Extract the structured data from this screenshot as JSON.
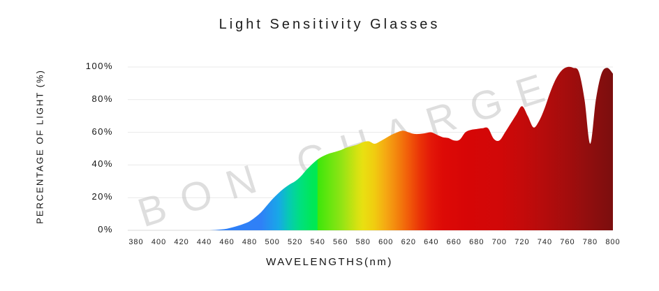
{
  "page": {
    "background": "#ffffff"
  },
  "chart_data": {
    "type": "area",
    "title": "Light Sensitivity Glasses",
    "xlabel": "WAVELENGTHS(nm)",
    "ylabel": "PERCENTAGE OF LIGHT (%)",
    "xlim": [
      380,
      800
    ],
    "ylim": [
      0,
      100
    ],
    "grid": "horizontal",
    "legend": "none",
    "gridline_color": "#e9e9e9",
    "baseline_color": "#d8d8d8",
    "x_start": 380,
    "x_step": 5,
    "values": [
      0,
      0,
      0,
      0,
      0,
      0,
      0,
      0,
      0,
      0,
      0,
      0,
      0,
      0,
      0.2,
      0.5,
      1,
      1.8,
      2.8,
      4,
      5.5,
      8,
      11,
      15,
      19,
      22.5,
      25.5,
      28,
      30,
      33,
      37,
      40.5,
      43.5,
      45.5,
      47,
      48,
      49,
      50.5,
      51.5,
      52.5,
      54,
      54.5,
      53,
      54.5,
      56.5,
      58.5,
      60,
      61,
      60,
      59,
      59,
      59.5,
      60,
      58.5,
      57,
      56.5,
      55,
      55.5,
      60,
      61.5,
      62,
      62.5,
      62.5,
      56,
      55,
      60,
      65.5,
      71,
      76,
      70,
      63,
      67,
      75,
      85,
      93,
      98,
      100,
      99.5,
      97,
      80,
      53,
      80,
      96,
      99.5,
      96
    ],
    "x_tick_labels": [
      "380",
      "400",
      "420",
      "440",
      "460",
      "480",
      "500",
      "520",
      "540",
      "560",
      "580",
      "600",
      "620",
      "640",
      "660",
      "680",
      "700",
      "720",
      "740",
      "760",
      "780",
      "800"
    ],
    "x_tick_step": 20,
    "y_tick_labels": [
      "100%",
      "80%",
      "60%",
      "40%",
      "20%",
      "0%"
    ],
    "fill": "spectrum-gradient",
    "gradient_stops": [
      {
        "offset": 0.0,
        "color": "#3080f7"
      },
      {
        "offset": 0.262,
        "color": "#2f80f7"
      },
      {
        "offset": 0.298,
        "color": "#18a7e8"
      },
      {
        "offset": 0.321,
        "color": "#06cbb2"
      },
      {
        "offset": 0.345,
        "color": "#00e07e"
      },
      {
        "offset": 0.369,
        "color": "#00e758"
      },
      {
        "offset": 0.38,
        "color": "#00e951"
      },
      {
        "offset": 0.381,
        "color": "#3de70b"
      },
      {
        "offset": 0.429,
        "color": "#8ee414"
      },
      {
        "offset": 0.464,
        "color": "#d6e212"
      },
      {
        "offset": 0.476,
        "color": "#e9e011"
      },
      {
        "offset": 0.5,
        "color": "#f0cc10"
      },
      {
        "offset": 0.524,
        "color": "#f5a813"
      },
      {
        "offset": 0.548,
        "color": "#f3830d"
      },
      {
        "offset": 0.571,
        "color": "#f15c0a"
      },
      {
        "offset": 0.595,
        "color": "#ea3407"
      },
      {
        "offset": 0.619,
        "color": "#e31708"
      },
      {
        "offset": 0.643,
        "color": "#dd0a06"
      },
      {
        "offset": 0.69,
        "color": "#d70606"
      },
      {
        "offset": 0.762,
        "color": "#d10808"
      },
      {
        "offset": 0.81,
        "color": "#c40a0a"
      },
      {
        "offset": 0.857,
        "color": "#b40c0c"
      },
      {
        "offset": 0.905,
        "color": "#a30d0d"
      },
      {
        "offset": 0.952,
        "color": "#8f0e0e"
      },
      {
        "offset": 1.0,
        "color": "#7b0e0e"
      }
    ],
    "watermark": {
      "text": "BON CHARGE",
      "color": "#bfbfbf",
      "opacity": 0.5,
      "rotation_deg": -17.5
    }
  }
}
